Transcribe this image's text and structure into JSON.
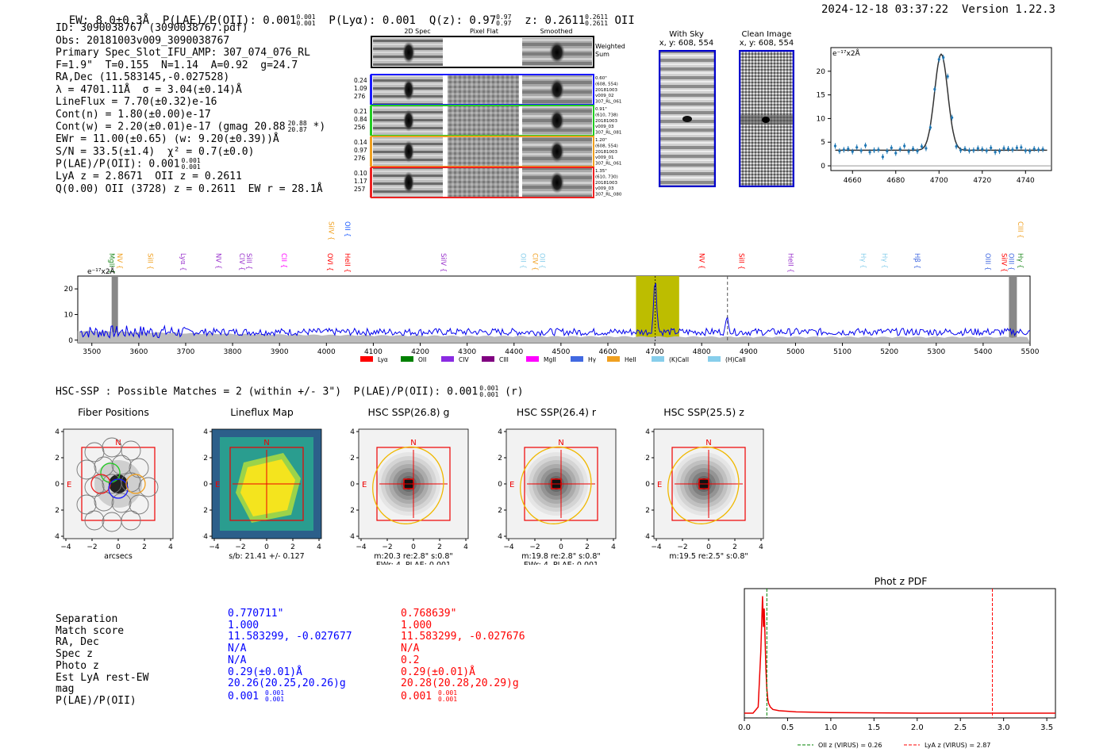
{
  "header": {
    "ew": "EW: 8.0±0.3Å",
    "plae_lab": "P(LAE)/P(OII): 0.001",
    "plae_sup": "0.001",
    "plae_sub": "0.001",
    "plya": "P(Lyα): 0.001",
    "qz": "Q(z): 0.97",
    "qz_sup": "0.97",
    "qz_sub": "0.97",
    "z": "z: 0.2611",
    "z_sup": "0.2611",
    "z_sub": "0.2611",
    "z_line": "OII",
    "timestamp": "2024-12-18 03:37:22",
    "version": "Version 1.22.3"
  },
  "info": {
    "id": "ID: 3090038767 (3090038767.pdf)",
    "obs": "Obs: 20181003v009_3090038767",
    "primary": "Primary Spec_Slot_IFU_AMP: 307_074_076_RL",
    "f": "F=1.9\"  T=0.155  N=1.14  A=0.92  g=24.7",
    "radec": "RA,Dec (11.583145,-0.027528)",
    "lambda": "λ = 4701.11Å  σ = 3.04(±0.14)Å",
    "lineflux": "LineFlux = 7.70(±0.32)e-16",
    "contn": "Cont(n) = 1.80(±0.00)e-17",
    "contw": "Cont(w) = 2.20(±0.01)e-17 (gmag 20.88",
    "contw_sup": "20.88",
    "contw_sub": "20.87",
    "contw_end": " *)",
    "ewr": "EWr = 11.00(±0.65) (w: 9.20(±0.39))Å",
    "sn": "S/N = 33.5(±1.4)  χ² = 0.7(±0.0)",
    "plae": "P(LAE)/P(OII): 0.001",
    "plae_sup": "0.001",
    "plae_sub": "0.001",
    "lyaz": "LyA z = 2.8671  OII z = 0.2611",
    "q": "Q(0.00) OII (3728) z = 0.2611  EW r = 28.1Å"
  },
  "cutouts": {
    "cols": [
      "2D Spec",
      "Pixel Flat",
      "Smoothed"
    ],
    "weighted": "Weighted\nSum",
    "rows": [
      {
        "left": [
          "0.24",
          "1.09",
          "276"
        ],
        "right": [
          "0.60\"",
          "(608, 554)",
          "20181003",
          "v009_02",
          "307_RL_061"
        ],
        "color": "#1a1aff"
      },
      {
        "left": [
          "0.21",
          "0.84",
          "256"
        ],
        "right": [
          "0.91\"",
          "(610, 738)",
          "20181003",
          "v009_03",
          "307_RL_081"
        ],
        "color": "#22cc22"
      },
      {
        "left": [
          "0.14",
          "0.97",
          "276"
        ],
        "right": [
          "1.20\"",
          "(608, 554)",
          "20181003",
          "v009_01",
          "307_RL_061"
        ],
        "color": "#f0a020"
      },
      {
        "left": [
          "0.10",
          "1.17",
          "257"
        ],
        "right": [
          "1.35\"",
          "(610, 730)",
          "20181003",
          "v009_03",
          "307_RL_080"
        ],
        "color": "#ee2222"
      }
    ]
  },
  "withsky": {
    "title": "With Sky",
    "coords": "x, y: 608, 554"
  },
  "clean": {
    "title": "Clean Image",
    "coords": "x, y: 608, 554"
  },
  "zoom_chart": {
    "type": "line",
    "ylabel_unit": "e⁻¹⁷x2Å",
    "x_ticks": [
      4660,
      4680,
      4700,
      4720,
      4740
    ],
    "y_ticks": [
      0,
      5,
      10,
      15,
      20
    ],
    "xlim": [
      4650,
      4752
    ],
    "ylim": [
      -1,
      25
    ],
    "fit": {
      "center": 4701,
      "sigma": 3.04,
      "amp": 20.3,
      "base": 3.3
    },
    "points_x": [
      4652,
      4654,
      4656,
      4658,
      4660,
      4662,
      4664,
      4666,
      4668,
      4670,
      4672,
      4674,
      4676,
      4678,
      4680,
      4682,
      4684,
      4686,
      4688,
      4690,
      4692,
      4694,
      4696,
      4698,
      4700,
      4702,
      4704,
      4706,
      4708,
      4710,
      4712,
      4714,
      4716,
      4718,
      4720,
      4722,
      4724,
      4726,
      4728,
      4730,
      4732,
      4734,
      4736,
      4738,
      4740,
      4742,
      4744,
      4746,
      4748
    ],
    "points_y": [
      4.2,
      3.1,
      3.4,
      3.6,
      3.0,
      3.9,
      3.2,
      4.3,
      2.9,
      3.3,
      3.4,
      1.9,
      3.1,
      3.8,
      2.7,
      3.5,
      4.2,
      3.0,
      3.6,
      3.1,
      4.1,
      3.7,
      8.1,
      16.2,
      22.5,
      22.9,
      18.9,
      10.2,
      4.1,
      3.3,
      3.6,
      3.2,
      3.3,
      3.7,
      3.5,
      3.2,
      3.8,
      2.9,
      3.1,
      3.7,
      3.6,
      3.4,
      3.8,
      3.9,
      3.2,
      3.1,
      3.6,
      3.4,
      3.5
    ]
  },
  "lines_top": [
    {
      "name": "MgII",
      "x": 3538,
      "color": "#228b22",
      "row": 2
    },
    {
      "name": "NV",
      "x": 3555,
      "color": "#f0a020",
      "row": 2
    },
    {
      "name": "SiII",
      "x": 3620,
      "color": "#f0a020",
      "row": 2
    },
    {
      "name": "Lyα",
      "x": 3690,
      "color": "#9932cc",
      "row": 2
    },
    {
      "name": "NV",
      "x": 3765,
      "color": "#9932cc",
      "row": 2
    },
    {
      "name": "CIV",
      "x": 3815,
      "color": "#9932cc",
      "row": 2
    },
    {
      "name": "SiII",
      "x": 3830,
      "color": "#9932cc",
      "row": 2
    },
    {
      "name": "CII",
      "x": 3905,
      "color": "#ff00ff",
      "row": 2
    },
    {
      "name": "OVI",
      "x": 4003,
      "color": "#ff0000",
      "row": 2
    },
    {
      "name": "SiIV",
      "x": 4005,
      "color": "#f0a020",
      "row": 1
    },
    {
      "name": "HeII",
      "x": 4040,
      "color": "#ff0000",
      "row": 2
    },
    {
      "name": "OII",
      "x": 4040,
      "color": "#1a5aff",
      "row": 1
    },
    {
      "name": "SiIV",
      "x": 4245,
      "color": "#9932cc",
      "row": 2
    },
    {
      "name": "OII",
      "x": 4415,
      "color": "#87ceeb",
      "row": 2
    },
    {
      "name": "CIV",
      "x": 4440,
      "color": "#f0a020",
      "row": 2
    },
    {
      "name": "OII",
      "x": 4455,
      "color": "#87ceeb",
      "row": 2
    },
    {
      "name": "NV",
      "x": 4795,
      "color": "#ff0000",
      "row": 2
    },
    {
      "name": "SiII",
      "x": 4880,
      "color": "#ff0000",
      "row": 2
    },
    {
      "name": "HeII",
      "x": 4985,
      "color": "#9932cc",
      "row": 2
    },
    {
      "name": "Hγ",
      "x": 5140,
      "color": "#87ceeb",
      "row": 2
    },
    {
      "name": "Hγ",
      "x": 5185,
      "color": "#87ceeb",
      "row": 2
    },
    {
      "name": "Hβ",
      "x": 5255,
      "color": "#4169e1",
      "row": 2
    },
    {
      "name": "OIII",
      "x": 5405,
      "color": "#4169e1",
      "row": 2
    },
    {
      "name": "SiIV",
      "x": 5440,
      "color": "#ff0000",
      "row": 2
    },
    {
      "name": "OIII",
      "x": 5455,
      "color": "#4169e1",
      "row": 2
    },
    {
      "name": "CIII",
      "x": 5475,
      "color": "#f0a020",
      "row": 1
    },
    {
      "name": "Hγ",
      "x": 5475,
      "color": "#228b22",
      "row": 2
    }
  ],
  "spectrum_chart": {
    "type": "line",
    "ylabel_unit": "e⁻¹⁷x2Å",
    "xlim": [
      3470,
      5500
    ],
    "ylim": [
      -1,
      25
    ],
    "x_ticks": [
      3500,
      3600,
      3700,
      3800,
      3900,
      4000,
      4100,
      4200,
      4300,
      4400,
      4500,
      4600,
      4700,
      4800,
      4900,
      5000,
      5100,
      5200,
      5300,
      5400,
      5500
    ],
    "y_ticks": [
      0,
      10,
      20
    ],
    "highlight": [
      4660,
      4752
    ],
    "peak_x": 4701,
    "dashed_x": 4855,
    "masked": [
      [
        3505,
        3565
      ],
      [
        5455,
        5500
      ]
    ],
    "legend": [
      "Lyα",
      "OII",
      "CIV",
      "CIII",
      "MgII",
      "Hγ",
      "HeII",
      "(K)CaII",
      "(H)CaII"
    ],
    "legend_colors": [
      "#ff0000",
      "#008000",
      "#8a2be2",
      "#800080",
      "#ff00ff",
      "#4169e1",
      "#f0a020",
      "#87ceeb",
      "#87ceeb"
    ]
  },
  "hsc": {
    "text": "HSC-SSP : Possible Matches = 2 (within +/- 3\")  P(LAE)/P(OII): 0.001",
    "sup": "0.001",
    "sub": "0.001",
    "end": " (r)"
  },
  "panels": [
    {
      "title": "Fiber Positions",
      "caption1": "arcsecs",
      "caption2": ""
    },
    {
      "title": "Lineflux Map",
      "caption1": "s/b: 21.41 +/- 0.127",
      "caption2": ""
    },
    {
      "title": "HSC SSP(26.8) g",
      "caption1": "m:20.3  re:2.8\"  s:0.8\"",
      "caption2": "EWr: 4, PLAE: 0.001"
    },
    {
      "title": "HSC SSP(26.4) r",
      "caption1": "m:19.8  re:2.8\"  s:0.8\"",
      "caption2": "EWr: 4, PLAE: 0.001"
    },
    {
      "title": "HSC SSP(25.5) z",
      "caption1": "m:19.5  re:2.5\"  s:0.8\"",
      "caption2": ""
    }
  ],
  "panel_axis": {
    "ticks": [
      "−4",
      "−2",
      "0",
      "2",
      "4"
    ],
    "n_label": "N",
    "e_label": "E"
  },
  "matches": {
    "labels": [
      "Separation",
      "Match score",
      "RA, Dec",
      "Spec z",
      "Photo z",
      "Est LyA rest-EW",
      "mag",
      "P(LAE)/P(OII)"
    ],
    "blue": [
      "0.770711\"",
      "1.000",
      "11.583299, -0.027677",
      "N/A",
      "N/A",
      "0.29(±0.01)Å",
      "20.26(20.25,20.26)g",
      "0.001"
    ],
    "red": [
      "0.768639\"",
      "1.000",
      "11.583299, -0.027676",
      "N/A",
      "0.2",
      "0.29(±0.01)Å",
      "20.28(20.28,20.29)g",
      "0.001"
    ],
    "plae_sup": "0.001",
    "plae_sub": "0.001"
  },
  "photz_chart": {
    "type": "line",
    "title": "Phot z PDF",
    "xlim": [
      0,
      3.6
    ],
    "ylim": [
      0,
      1.05
    ],
    "x_ticks": [
      0.0,
      0.5,
      1.0,
      1.5,
      2.0,
      2.5,
      3.0,
      3.5
    ],
    "x_tick_labels": [
      "0.0",
      "0.5",
      "1.0",
      "1.5",
      "2.0",
      "2.5",
      "3.0",
      "3.5"
    ],
    "oii_z": 0.26,
    "lya_z": 2.87,
    "pdf_x": [
      0.0,
      0.1,
      0.16,
      0.19,
      0.21,
      0.22,
      0.23,
      0.24,
      0.25,
      0.26,
      0.27,
      0.28,
      0.3,
      0.33,
      0.4,
      0.6,
      1.0,
      2.0,
      3.0,
      3.6
    ],
    "pdf_y": [
      0.0,
      0.0,
      0.05,
      0.5,
      0.95,
      0.7,
      0.85,
      0.6,
      0.35,
      0.2,
      0.12,
      0.08,
      0.05,
      0.03,
      0.02,
      0.01,
      0.005,
      0.0,
      0.0,
      0.0
    ],
    "legend_oii": "OII z (VIRUS) = 0.26",
    "legend_lya": "LyA z (VIRUS) = 2.87"
  }
}
